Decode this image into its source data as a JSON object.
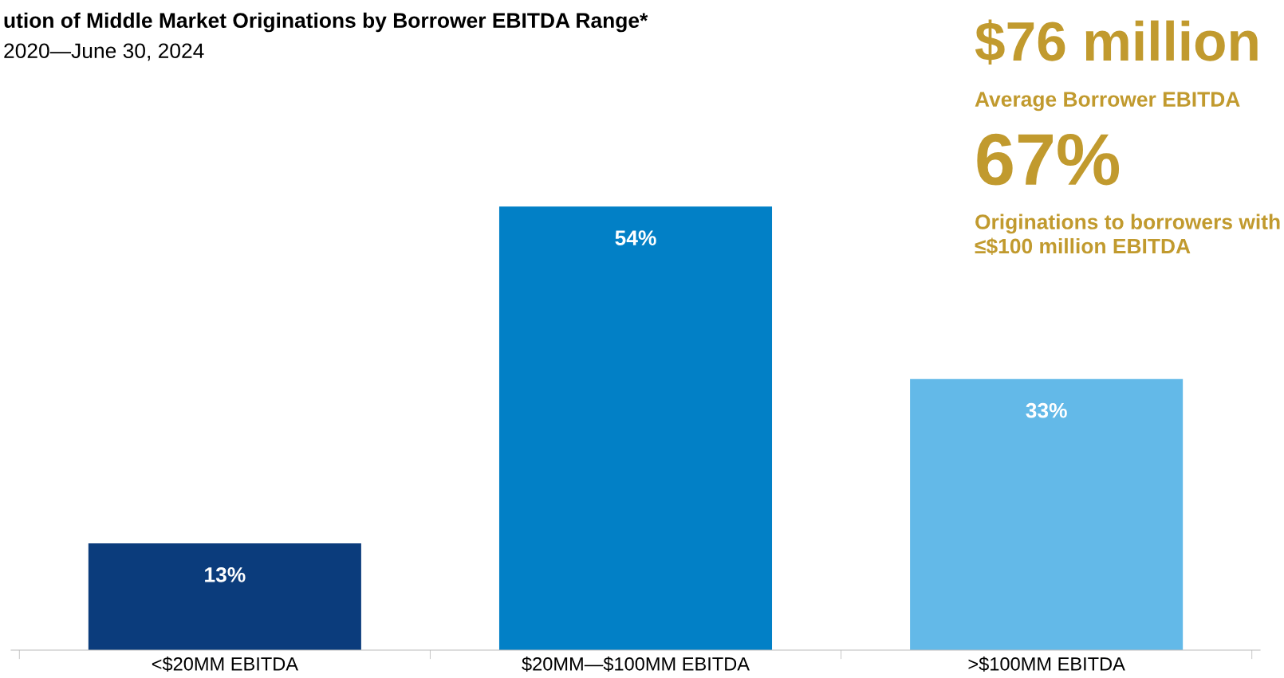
{
  "chart_data": {
    "type": "bar",
    "title": "ution of Middle Market Originations by Borrower EBITDA Range*",
    "subtitle": "2020—June 30, 2024",
    "categories": [
      "<$20MM EBITDA",
      "$20MM—$100MM EBITDA",
      ">$100MM EBITDA"
    ],
    "values": [
      13,
      54,
      33
    ],
    "colors": [
      "#0b3c7c",
      "#0280c6",
      "#63b9e8"
    ],
    "value_labels": [
      "13%",
      "54%",
      "33%"
    ],
    "annotations": [
      "$76 million",
      "Average Borrower EBITDA",
      "67%",
      "Originations to borrowers with ≤$100 million EBITDA"
    ],
    "grid": false,
    "legend": false
  }
}
